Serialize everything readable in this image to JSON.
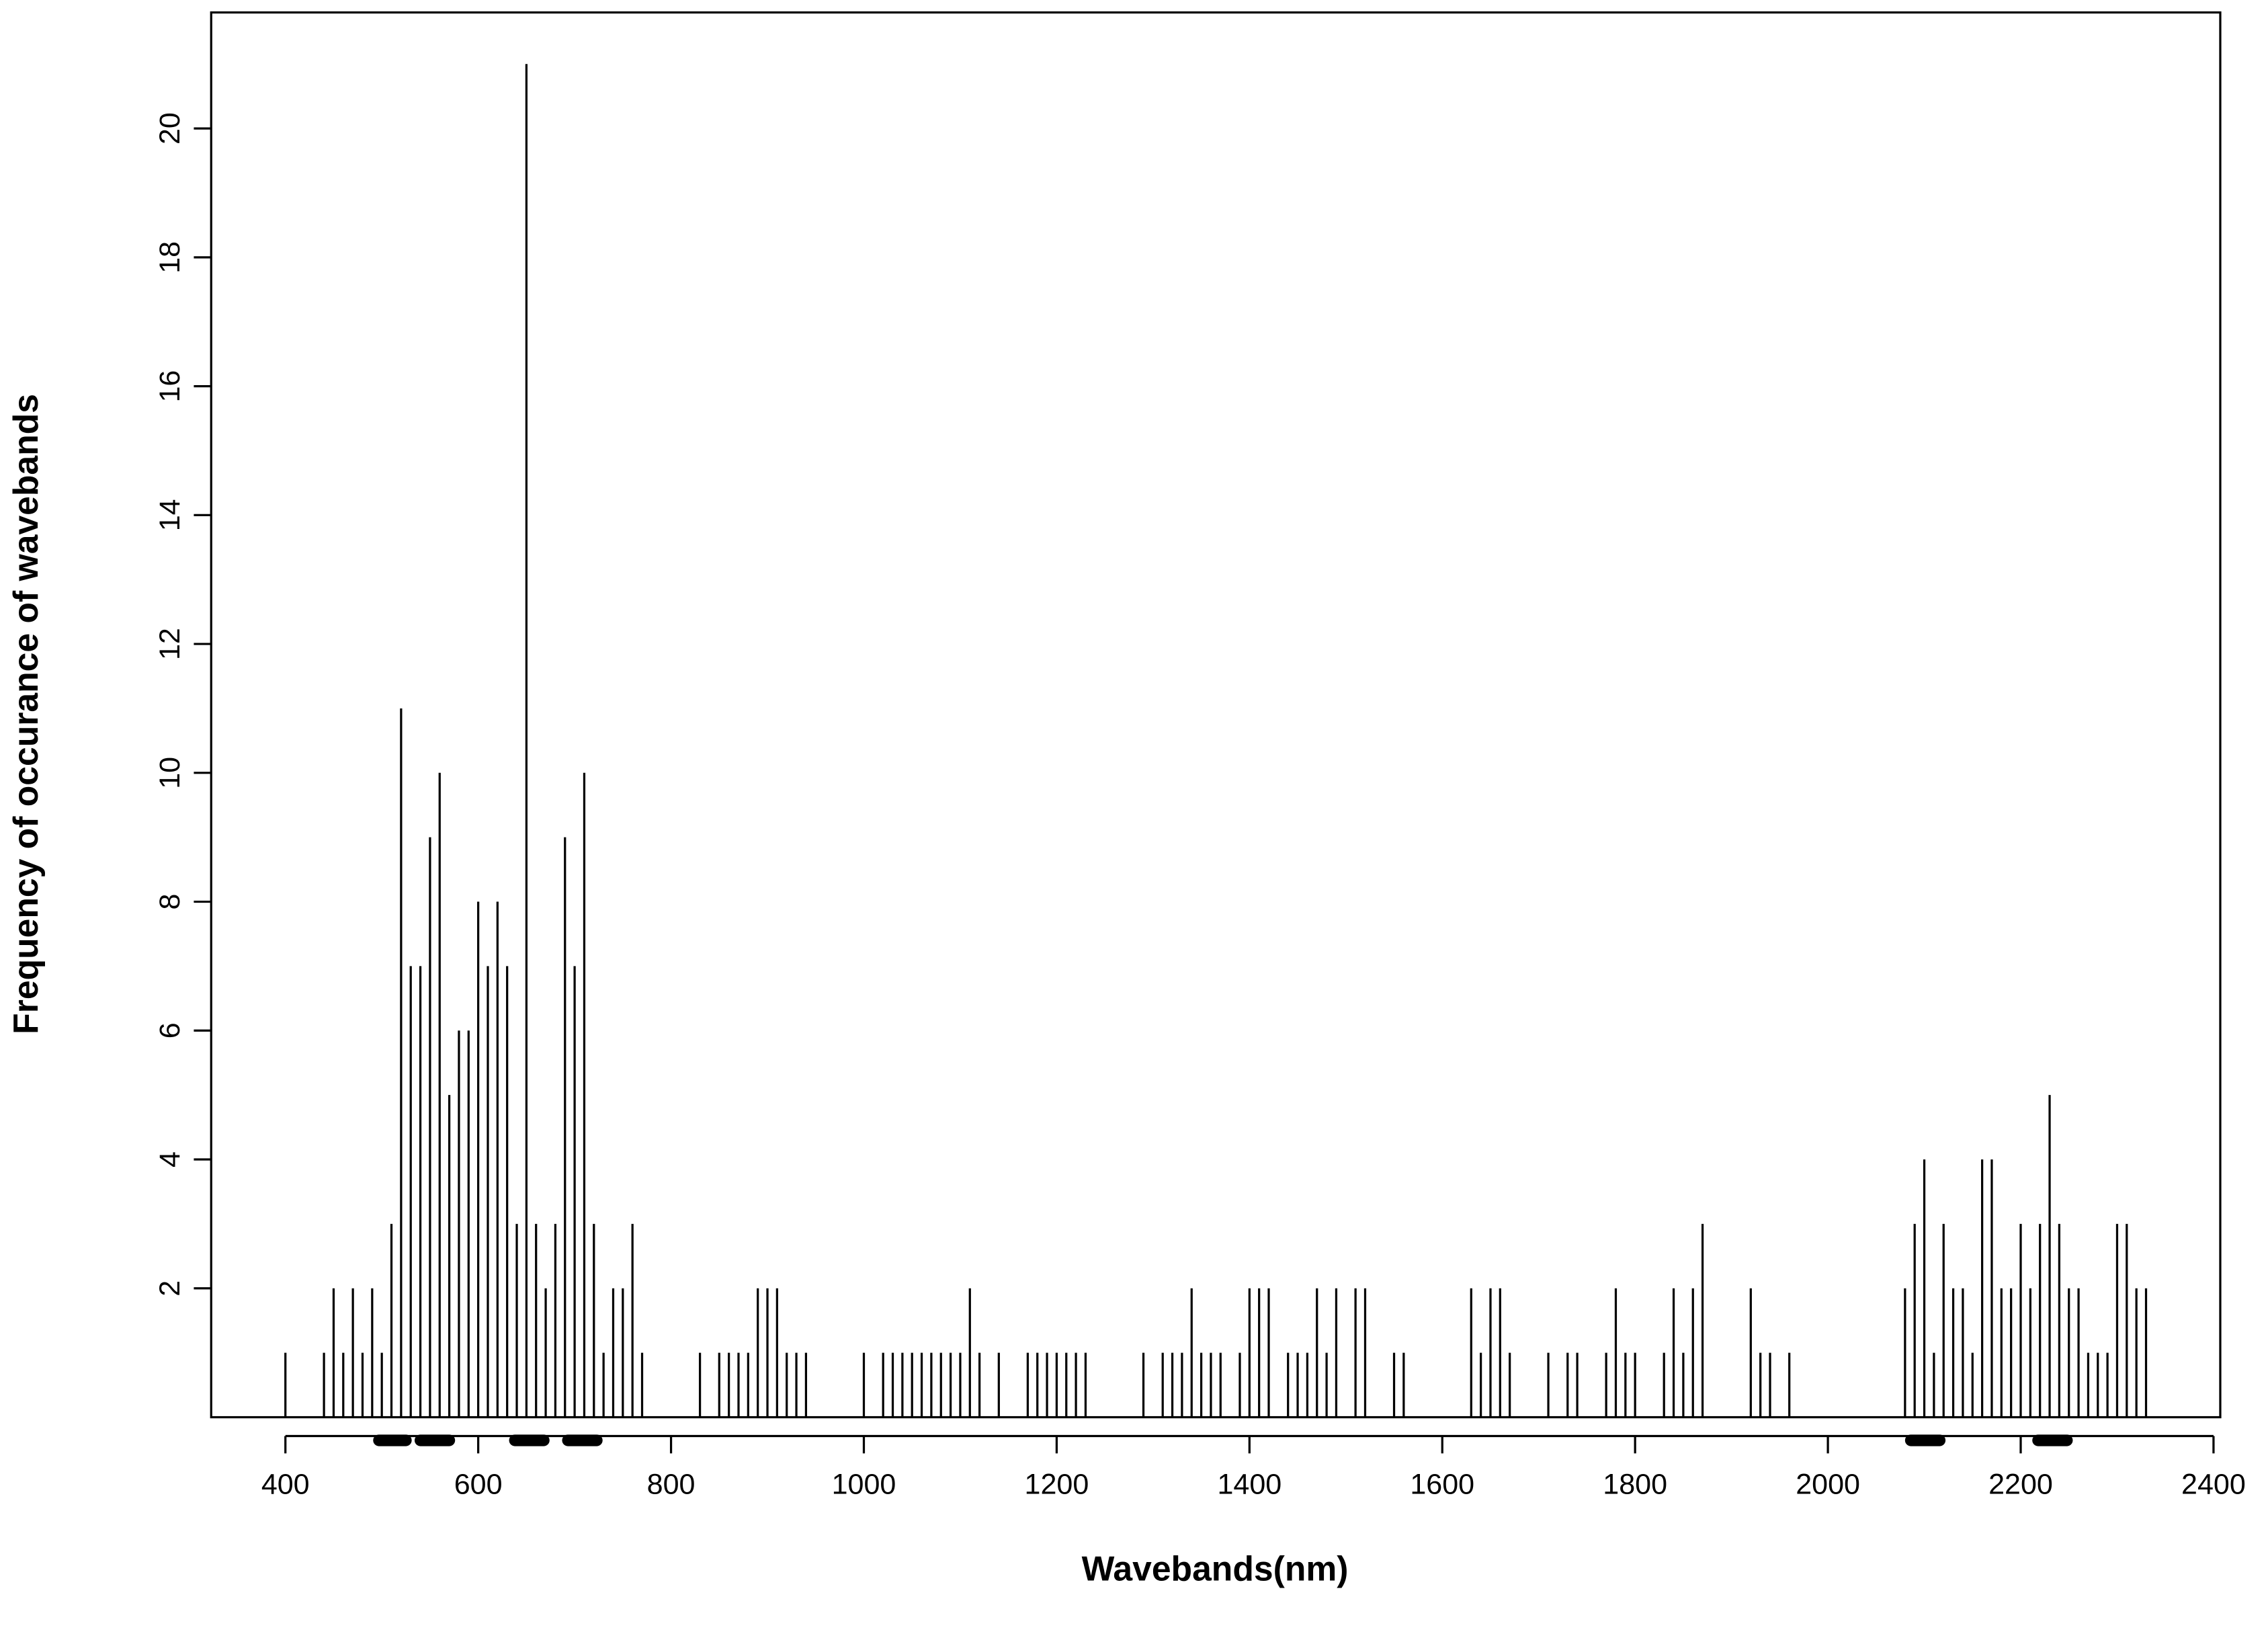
{
  "chart_data": {
    "type": "spike",
    "x_label": "Wavebands(nm)",
    "y_label": "Frequency of occurance of wavebands",
    "color": "#000000",
    "xlim": [
      323,
      2407
    ],
    "ylim": [
      0,
      21.8
    ],
    "xticks": [
      400,
      600,
      800,
      1000,
      1200,
      1400,
      1600,
      1800,
      2000,
      2200,
      2400
    ],
    "yticks": [
      2,
      4,
      6,
      8,
      10,
      12,
      14,
      16,
      18,
      20
    ],
    "x": [
      400,
      440,
      450,
      460,
      470,
      480,
      490,
      500,
      510,
      520,
      530,
      540,
      550,
      560,
      570,
      580,
      590,
      600,
      610,
      620,
      630,
      640,
      650,
      660,
      670,
      680,
      690,
      700,
      710,
      720,
      730,
      740,
      750,
      760,
      770,
      830,
      850,
      860,
      870,
      880,
      890,
      900,
      910,
      920,
      930,
      940,
      1000,
      1020,
      1030,
      1040,
      1050,
      1060,
      1070,
      1080,
      1090,
      1100,
      1110,
      1120,
      1140,
      1170,
      1180,
      1190,
      1200,
      1210,
      1220,
      1230,
      1290,
      1310,
      1320,
      1330,
      1340,
      1350,
      1360,
      1370,
      1390,
      1400,
      1410,
      1420,
      1440,
      1450,
      1460,
      1470,
      1480,
      1490,
      1510,
      1520,
      1550,
      1560,
      1630,
      1640,
      1650,
      1660,
      1670,
      1710,
      1730,
      1740,
      1770,
      1780,
      1790,
      1800,
      1830,
      1840,
      1850,
      1860,
      1870,
      1920,
      1930,
      1940,
      1960,
      2080,
      2090,
      2100,
      2110,
      2120,
      2130,
      2140,
      2150,
      2160,
      2170,
      2180,
      2190,
      2200,
      2210,
      2220,
      2230,
      2240,
      2250,
      2260,
      2270,
      2280,
      2290,
      2300,
      2310,
      2320,
      2330
    ],
    "values": [
      1,
      1,
      2,
      1,
      2,
      1,
      2,
      1,
      3,
      11,
      7,
      7,
      9,
      10,
      5,
      6,
      6,
      8,
      7,
      8,
      7,
      3,
      21,
      3,
      2,
      3,
      9,
      7,
      10,
      3,
      1,
      2,
      2,
      3,
      1,
      1,
      1,
      1,
      1,
      1,
      2,
      2,
      2,
      1,
      1,
      1,
      1,
      1,
      1,
      1,
      1,
      1,
      1,
      1,
      1,
      1,
      2,
      1,
      1,
      1,
      1,
      1,
      1,
      1,
      1,
      1,
      1,
      1,
      1,
      1,
      2,
      1,
      1,
      1,
      1,
      2,
      2,
      2,
      1,
      1,
      1,
      2,
      1,
      2,
      2,
      2,
      1,
      1,
      2,
      1,
      2,
      2,
      1,
      1,
      1,
      1,
      1,
      2,
      1,
      1,
      1,
      2,
      1,
      2,
      3,
      2,
      1,
      1,
      1,
      2,
      3,
      4,
      1,
      3,
      2,
      2,
      1,
      4,
      4,
      2,
      2,
      3,
      2,
      3,
      5,
      3,
      2,
      2,
      1,
      1,
      1,
      3,
      3,
      2,
      2
    ],
    "highlighted_ranges": [
      [
        497,
        525
      ],
      [
        540,
        570
      ],
      [
        638,
        668
      ],
      [
        693,
        723
      ],
      [
        2086,
        2116
      ],
      [
        2218,
        2248
      ]
    ]
  }
}
